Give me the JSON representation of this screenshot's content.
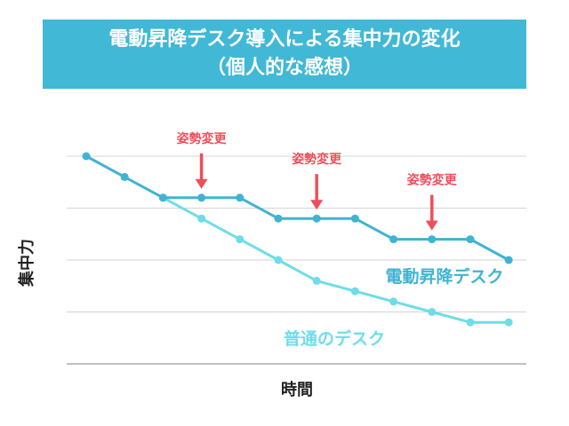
{
  "title": {
    "line1": "電動昇降デスク導入による集中力の変化",
    "line2": "（個人的な感想）"
  },
  "colors": {
    "banner": "#41b8d6",
    "standing_desk": "#41b3d2",
    "normal_desk": "#6fdde8",
    "arrow": "#ee4f5a",
    "grid": "#d4d4d4"
  },
  "chart_data": {
    "type": "line",
    "xlabel": "時間",
    "ylabel": "集中力",
    "x": [
      1,
      2,
      3,
      4,
      5,
      6,
      7,
      8,
      9,
      10,
      11,
      12
    ],
    "ylim": [
      0,
      10
    ],
    "grid": true,
    "series": [
      {
        "name": "電動昇降デスク",
        "x": [
          1,
          2,
          3,
          4,
          5,
          6,
          7,
          8,
          9,
          10,
          11,
          12
        ],
        "values": [
          10,
          9,
          8,
          8,
          8,
          7,
          7,
          7,
          6,
          6,
          6,
          5
        ]
      },
      {
        "name": "普通のデスク",
        "x": [
          3,
          4,
          5,
          6,
          7,
          8,
          9,
          10,
          11,
          12
        ],
        "values": [
          8,
          7,
          6,
          5,
          4,
          3.5,
          3,
          2.5,
          2,
          2
        ]
      }
    ],
    "annotations": [
      {
        "text": "姿勢変更",
        "x": 4,
        "y": 8
      },
      {
        "text": "姿勢変更",
        "x": 7,
        "y": 7
      },
      {
        "text": "姿勢変更",
        "x": 10,
        "y": 6
      }
    ]
  }
}
